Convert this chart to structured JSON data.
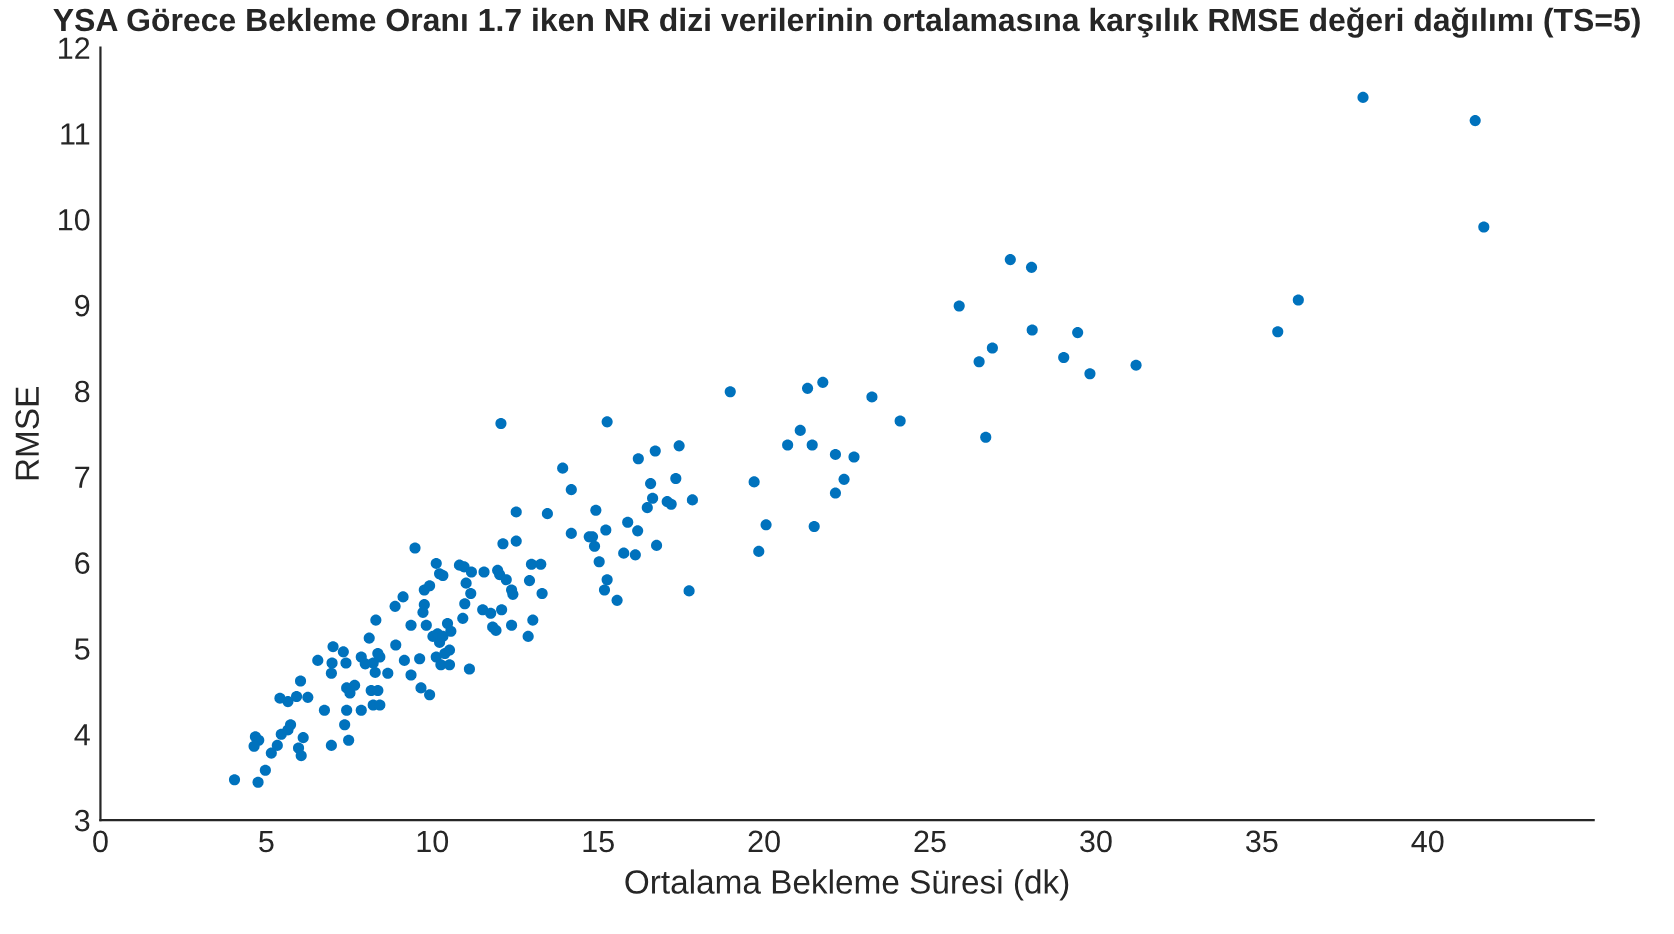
{
  "chart_data": {
    "type": "scatter",
    "title": "YSA Görece Bekleme Oranı 1.7 iken NR dizi verilerinin ortalamasına karşılık RMSE değeri dağılımı (TS=5)",
    "xlabel": "Ortalama Bekleme Süresi (dk)",
    "ylabel": "RMSE",
    "x": [
      4.04,
      4.75,
      4.97,
      4.67,
      4.77,
      4.63,
      5.15,
      5.33,
      5.45,
      5.65,
      5.73,
      5.41,
      5.65,
      5.91,
      6.25,
      6.03,
      5.97,
      6.05,
      6.11,
      6.75,
      6.55,
      6.96,
      6.96,
      7.01,
      6.98,
      7.32,
      7.4,
      7.42,
      7.42,
      7.36,
      7.48,
      7.52,
      7.66,
      7.86,
      7.86,
      7.98,
      8.1,
      8.16,
      8.36,
      8.22,
      8.42,
      8.36,
      8.22,
      8.3,
      8.42,
      8.28,
      8.66,
      8.88,
      8.9,
      9.12,
      9.16,
      9.36,
      9.36,
      9.48,
      9.62,
      9.66,
      9.72,
      9.76,
      9.82,
      9.92,
      9.76,
      9.92,
      10.12,
      10.22,
      10.32,
      10.02,
      10.16,
      10.22,
      10.32,
      10.38,
      10.12,
      10.26,
      10.52,
      10.52,
      10.46,
      10.56,
      10.82,
      10.96,
      11.02,
      10.98,
      10.92,
      11.12,
      11.18,
      11.16,
      11.56,
      11.52,
      11.76,
      11.82,
      11.92,
      11.97,
      12.03,
      12.09,
      12.07,
      12.13,
      12.23,
      12.39,
      12.43,
      12.39,
      12.53,
      12.53,
      13.47,
      12.99,
      13.27,
      12.93,
      13.31,
      13.03,
      12.89,
      13.93,
      14.19,
      14.19,
      14.93,
      14.83,
      14.73,
      14.89,
      15.23,
      15.03,
      15.27,
      15.19,
      15.57,
      15.27,
      15.89,
      16.19,
      15.77,
      16.12,
      16.76,
      16.21,
      16.72,
      17.44,
      16.58,
      17.34,
      16.48,
      16.64,
      17.08,
      17.2,
      17.84,
      17.74,
      18.98,
      19.7,
      19.84,
      20.06,
      20.71,
      21.09,
      21.45,
      21.31,
      21.77,
      22.15,
      22.71,
      22.41,
      22.15,
      21.51,
      23.25,
      24.1,
      25.88,
      26.48,
      26.88,
      26.68,
      27.42,
      28.06,
      28.08,
      29.03,
      29.45,
      29.82,
      31.21,
      38.05,
      41.43,
      41.69,
      36.1,
      35.48
    ],
    "series": [
      {
        "color": "#0072bd",
        "values": [
          3.47,
          3.44,
          3.58,
          3.97,
          3.93,
          3.86,
          3.78,
          3.87,
          4.0,
          4.05,
          4.11,
          4.42,
          4.38,
          4.44,
          4.43,
          4.62,
          3.84,
          3.75,
          3.96,
          4.28,
          4.86,
          3.87,
          4.71,
          5.02,
          4.83,
          4.96,
          4.83,
          4.54,
          4.28,
          4.11,
          3.93,
          4.48,
          4.57,
          4.28,
          4.9,
          4.82,
          5.12,
          4.51,
          4.51,
          4.34,
          4.34,
          4.94,
          4.83,
          5.33,
          4.9,
          4.72,
          4.71,
          5.49,
          5.04,
          5.6,
          4.86,
          4.69,
          5.27,
          6.17,
          4.88,
          4.54,
          5.42,
          5.51,
          5.27,
          4.46,
          5.68,
          5.73,
          5.99,
          5.87,
          5.85,
          5.14,
          5.17,
          5.07,
          5.14,
          4.94,
          4.9,
          4.81,
          4.81,
          4.98,
          5.29,
          5.2,
          5.97,
          5.95,
          5.76,
          5.52,
          5.35,
          4.76,
          5.89,
          5.64,
          5.89,
          5.45,
          5.41,
          5.25,
          5.21,
          5.91,
          5.86,
          5.45,
          7.62,
          6.22,
          5.8,
          5.68,
          5.63,
          5.27,
          6.59,
          6.25,
          6.57,
          5.98,
          5.98,
          5.79,
          5.64,
          5.33,
          5.14,
          7.1,
          6.85,
          6.34,
          6.61,
          6.3,
          6.3,
          6.19,
          6.38,
          6.01,
          5.8,
          5.68,
          5.56,
          7.64,
          6.47,
          6.37,
          6.11,
          6.09,
          6.2,
          7.21,
          7.3,
          7.36,
          6.92,
          6.98,
          6.64,
          6.75,
          6.71,
          6.68,
          6.73,
          5.67,
          7.99,
          6.94,
          6.13,
          6.44,
          7.37,
          7.54,
          7.37,
          8.03,
          8.1,
          7.26,
          7.23,
          6.97,
          6.81,
          6.42,
          7.93,
          7.65,
          8.99,
          8.34,
          8.5,
          7.46,
          9.53,
          9.44,
          8.71,
          8.39,
          8.68,
          8.2,
          8.3,
          11.42,
          11.15,
          9.91,
          9.06,
          8.69
        ]
      }
    ],
    "xlim": [
      0,
      45
    ],
    "xticks": [
      0,
      5,
      10,
      15,
      20,
      25,
      30,
      35,
      40
    ],
    "ylim": [
      3,
      12
    ],
    "yticks": [
      3,
      4,
      5,
      6,
      7,
      8,
      9,
      10,
      11,
      12
    ],
    "grid": false,
    "legend": false,
    "marker": "circle"
  }
}
